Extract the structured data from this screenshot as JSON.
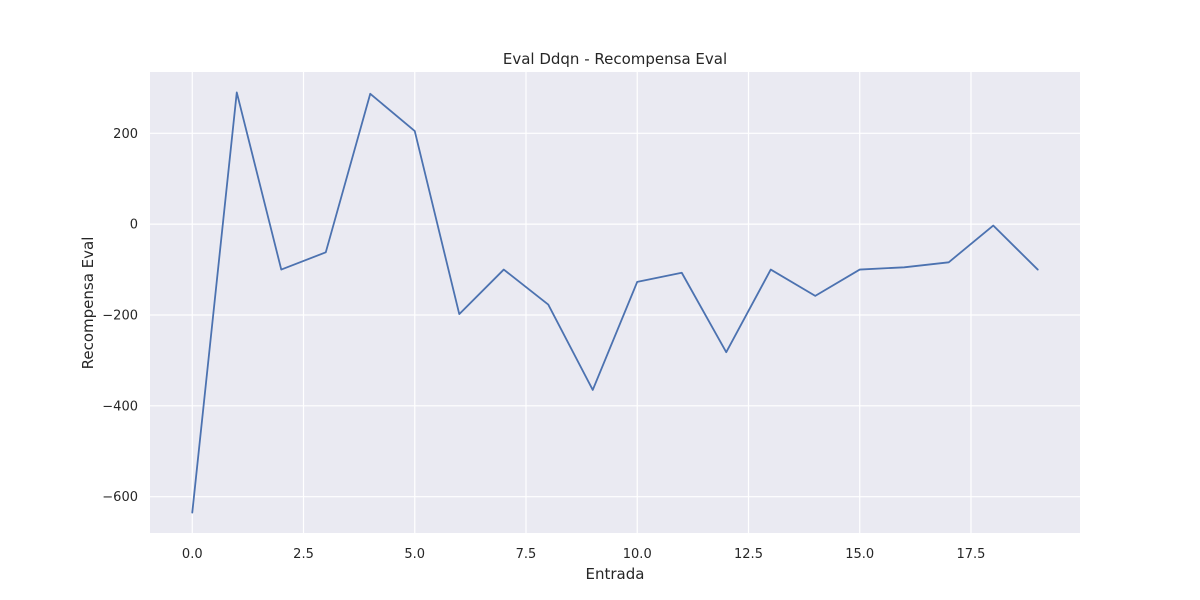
{
  "chart_data": {
    "type": "line",
    "title": "Eval Ddqn - Recompensa Eval",
    "xlabel": "Entrada",
    "ylabel": "Recompensa Eval",
    "x": [
      0,
      1,
      2,
      3,
      4,
      5,
      6,
      7,
      8,
      9,
      10,
      11,
      12,
      13,
      14,
      15,
      16,
      17,
      18,
      19
    ],
    "series": [
      {
        "values": [
          -635,
          290,
          -100,
          -62,
          287,
          205,
          -198,
          -100,
          -177,
          -365,
          -127,
          -107,
          -282,
          -100,
          -158,
          -100,
          -95,
          -84,
          -3,
          -100
        ]
      }
    ],
    "xlim": [
      -0.95,
      19.95
    ],
    "ylim": [
      -680,
      335
    ],
    "xticks": [
      0,
      2.5,
      5,
      7.5,
      10,
      12.5,
      15,
      17.5
    ],
    "xtick_labels": [
      "0.0",
      "2.5",
      "5.0",
      "7.5",
      "10.0",
      "12.5",
      "15.0",
      "17.5"
    ],
    "yticks": [
      -600,
      -400,
      -200,
      0,
      200
    ],
    "ytick_labels": [
      "−600",
      "−400",
      "−200",
      "0",
      "200"
    ],
    "grid": true,
    "colors": {
      "series": "#4c72b0",
      "background": "#eaeaf2",
      "grid": "#ffffff"
    }
  }
}
